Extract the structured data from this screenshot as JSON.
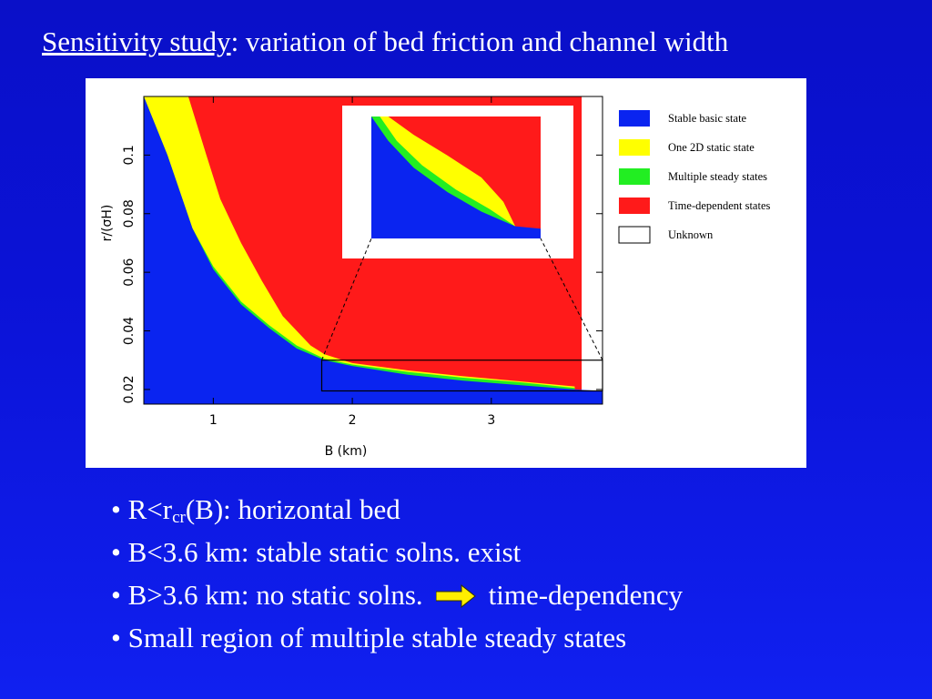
{
  "slide": {
    "title_underlined": "Sensitivity study",
    "title_rest": ": variation of bed friction and channel width"
  },
  "bullets": [
    {
      "bullet": "•",
      "pre": "R<r",
      "sub": "cr",
      "post": "(B): horizontal bed"
    },
    {
      "bullet": "•",
      "text": "B<3.6 km: stable static solns. exist"
    },
    {
      "bullet": "•",
      "text_before_arrow": "B>3.6 km: no static solns.",
      "text_after_arrow": "time-dependency",
      "arrow_icon": "right-arrow-icon",
      "arrow_color": "#ffee00"
    },
    {
      "bullet": "•",
      "text": "Small region of multiple stable steady states"
    }
  ],
  "chart_data": {
    "type": "heatmap",
    "xlabel": "B (km)",
    "ylabel": "r/(σH)",
    "xlim": [
      0.5,
      3.8
    ],
    "ylim": [
      0.015,
      0.12
    ],
    "xticks": [
      1,
      2,
      3
    ],
    "yticks": [
      0.02,
      0.04,
      0.06,
      0.08,
      0.1
    ],
    "grid": false,
    "legend_position": "right",
    "legend": [
      {
        "label": "Stable basic state",
        "color": "#0a24f0"
      },
      {
        "label": "One 2D static state",
        "color": "#ffff00"
      },
      {
        "label": "Multiple steady states",
        "color": "#22ee22"
      },
      {
        "label": "Time-dependent states",
        "color": "#ff1a1a"
      },
      {
        "label": "Unknown",
        "color": "#ffffff"
      }
    ],
    "regions": {
      "blue_upper_boundary": [
        [
          0.67,
          0.1
        ],
        [
          0.85,
          0.075
        ],
        [
          1.0,
          0.061
        ],
        [
          1.2,
          0.049
        ],
        [
          1.4,
          0.041
        ],
        [
          1.6,
          0.034
        ],
        [
          1.8,
          0.03
        ],
        [
          2.0,
          0.028
        ],
        [
          2.4,
          0.025
        ],
        [
          2.8,
          0.023
        ],
        [
          3.2,
          0.0215
        ],
        [
          3.6,
          0.02
        ],
        [
          3.8,
          0.0195
        ]
      ],
      "green_upper_boundary": [
        [
          0.67,
          0.1
        ],
        [
          0.85,
          0.075
        ],
        [
          1.0,
          0.062
        ],
        [
          1.2,
          0.05
        ],
        [
          1.4,
          0.042
        ],
        [
          1.6,
          0.035
        ],
        [
          1.8,
          0.0305
        ],
        [
          2.0,
          0.0285
        ],
        [
          2.4,
          0.026
        ],
        [
          2.8,
          0.024
        ],
        [
          3.2,
          0.0225
        ],
        [
          3.6,
          0.0205
        ]
      ],
      "yellow_upper_boundary": [
        [
          0.82,
          0.12
        ],
        [
          0.95,
          0.1
        ],
        [
          1.05,
          0.085
        ],
        [
          1.2,
          0.07
        ],
        [
          1.35,
          0.057
        ],
        [
          1.5,
          0.045
        ],
        [
          1.6,
          0.04
        ],
        [
          1.7,
          0.035
        ],
        [
          1.8,
          0.032
        ],
        [
          2.0,
          0.029
        ],
        [
          2.4,
          0.0265
        ],
        [
          2.8,
          0.0245
        ],
        [
          3.2,
          0.0228
        ],
        [
          3.6,
          0.021
        ]
      ],
      "red_right_edge_B": 3.65,
      "unknown_right_of_B": 3.65
    },
    "zoom_box": {
      "x": [
        1.78,
        3.8
      ],
      "y": [
        0.0195,
        0.03
      ]
    },
    "inset": {
      "description_regions": "magnified view of zoom box",
      "blue_upper_boundary": [
        [
          0.0,
          1.0
        ],
        [
          0.1,
          0.8
        ],
        [
          0.25,
          0.58
        ],
        [
          0.45,
          0.38
        ],
        [
          0.65,
          0.22
        ],
        [
          0.85,
          0.1
        ],
        [
          1.0,
          0.08
        ]
      ],
      "green_upper_boundary": [
        [
          0.05,
          1.0
        ],
        [
          0.15,
          0.8
        ],
        [
          0.3,
          0.6
        ],
        [
          0.5,
          0.4
        ],
        [
          0.7,
          0.24
        ],
        [
          0.85,
          0.1
        ]
      ],
      "yellow_upper_boundary": [
        [
          0.1,
          1.0
        ],
        [
          0.25,
          0.85
        ],
        [
          0.45,
          0.68
        ],
        [
          0.65,
          0.5
        ],
        [
          0.78,
          0.3
        ],
        [
          0.85,
          0.1
        ]
      ]
    }
  }
}
